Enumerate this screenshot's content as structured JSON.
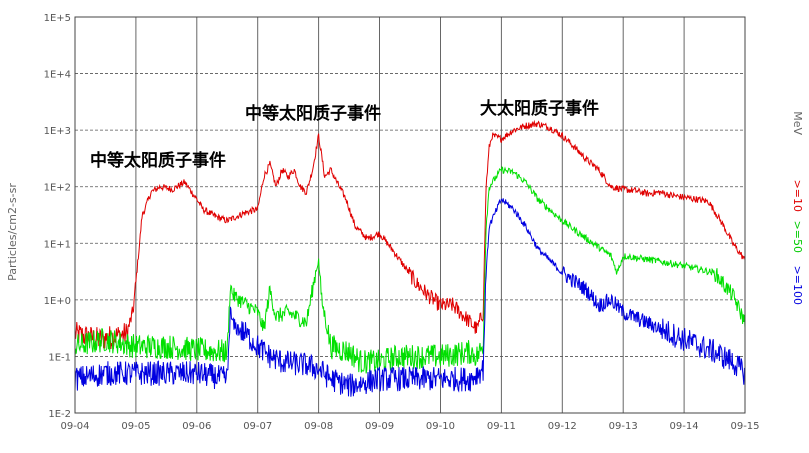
{
  "chart_data": {
    "type": "line",
    "title": "",
    "ylabel": "Particles/cm2-s-sr",
    "xlabel": "",
    "yscale": "log",
    "ylim": [
      0.01,
      100000
    ],
    "xlim": [
      "09-04",
      "09-15"
    ],
    "x_ticks": [
      "09-04",
      "09-05",
      "09-06",
      "09-07",
      "09-08",
      "09-09",
      "09-10",
      "09-11",
      "09-12",
      "09-13",
      "09-14",
      "09-15"
    ],
    "y_ticks": [
      "1E-2",
      "1E-1",
      "1E+0",
      "1E+1",
      "1E+2",
      "1E+3",
      "1E+4",
      "1E+5"
    ],
    "grid": "dashed-horizontal, solid-vertical",
    "legend": [
      {
        "label": ">=10",
        "color": "#e00000"
      },
      {
        "label": ">=50",
        "color": "#00e000"
      },
      {
        "label": ">=100",
        "color": "#0000e0"
      }
    ],
    "legend_unit": "MeV",
    "legend_placement": "right (rotated)",
    "annotations": [
      {
        "text": "中等太阳质子事件"
      },
      {
        "text": "中等太阳质子事件"
      },
      {
        "text": "大太阳质子事件"
      }
    ],
    "series": [
      {
        "name": ">=10",
        "color": "#e00000",
        "x": [
          0,
          0.4,
          0.85,
          0.95,
          1.0,
          1.1,
          1.25,
          1.4,
          1.6,
          1.8,
          2.0,
          2.1,
          2.3,
          2.5,
          2.8,
          3.0,
          3.1,
          3.2,
          3.3,
          3.4,
          3.5,
          3.6,
          3.7,
          3.8,
          3.9,
          4.0,
          4.1,
          4.2,
          4.3,
          4.45,
          4.6,
          4.8,
          5.0,
          5.2,
          5.4,
          5.6,
          5.8,
          6.0,
          6.2,
          6.4,
          6.6,
          6.7,
          6.75,
          6.8,
          6.85,
          7.0,
          7.2,
          7.4,
          7.6,
          7.8,
          8.0,
          8.2,
          8.4,
          8.6,
          8.8,
          9.0,
          9.2,
          9.4,
          9.6,
          9.8,
          10.0,
          10.2,
          10.4,
          10.6,
          10.8,
          11.0
        ],
        "y": [
          0.25,
          0.2,
          0.25,
          0.6,
          2,
          30,
          80,
          100,
          90,
          120,
          60,
          40,
          30,
          25,
          35,
          40,
          150,
          250,
          100,
          200,
          150,
          200,
          100,
          80,
          200,
          800,
          150,
          200,
          120,
          60,
          20,
          12,
          15,
          8,
          4,
          2,
          1.2,
          0.8,
          0.8,
          0.5,
          0.3,
          0.6,
          100,
          500,
          800,
          700,
          1000,
          1200,
          1300,
          1100,
          800,
          500,
          300,
          200,
          100,
          90,
          85,
          75,
          80,
          70,
          65,
          60,
          55,
          25,
          10,
          5
        ]
      },
      {
        "name": ">=50",
        "color": "#00e000",
        "x": [
          0,
          0.5,
          1.0,
          1.5,
          2.0,
          2.5,
          2.55,
          2.6,
          2.7,
          3.0,
          3.1,
          3.2,
          3.3,
          3.5,
          3.8,
          3.95,
          4.0,
          4.05,
          4.2,
          4.5,
          4.7,
          5.0,
          5.3,
          5.5,
          6.0,
          6.5,
          6.6,
          6.7,
          6.75,
          6.8,
          7.0,
          7.2,
          7.4,
          7.6,
          8.0,
          8.4,
          8.8,
          8.9,
          9.0,
          9.5,
          10.0,
          10.5,
          10.8,
          11.0
        ],
        "y": [
          0.15,
          0.2,
          0.15,
          0.15,
          0.13,
          0.12,
          1.8,
          1.2,
          1.0,
          0.6,
          0.3,
          1.5,
          0.5,
          0.6,
          0.4,
          3,
          5,
          1,
          0.15,
          0.12,
          0.08,
          0.08,
          0.1,
          0.1,
          0.1,
          0.12,
          0.1,
          0.15,
          20,
          100,
          200,
          180,
          120,
          60,
          25,
          12,
          6,
          3,
          6,
          5,
          4,
          3,
          1.2,
          0.4
        ]
      },
      {
        "name": ">=100",
        "color": "#0000e0",
        "x": [
          0,
          0.5,
          1.0,
          1.5,
          2.0,
          2.5,
          2.55,
          2.6,
          2.8,
          3.0,
          3.2,
          3.4,
          3.8,
          4.0,
          4.2,
          4.5,
          5.0,
          5.5,
          6.0,
          6.5,
          6.6,
          6.7,
          6.75,
          6.8,
          7.0,
          7.2,
          7.4,
          7.6,
          8.0,
          8.4,
          8.6,
          8.8,
          9.0,
          9.5,
          10.0,
          10.5,
          10.8,
          11.0
        ],
        "y": [
          0.04,
          0.05,
          0.05,
          0.05,
          0.05,
          0.04,
          0.6,
          0.35,
          0.25,
          0.15,
          0.1,
          0.08,
          0.07,
          0.06,
          0.04,
          0.03,
          0.04,
          0.04,
          0.04,
          0.04,
          0.05,
          0.06,
          3,
          20,
          60,
          40,
          20,
          8,
          3,
          1.5,
          0.8,
          1.0,
          0.6,
          0.35,
          0.2,
          0.12,
          0.08,
          0.05
        ]
      }
    ]
  }
}
